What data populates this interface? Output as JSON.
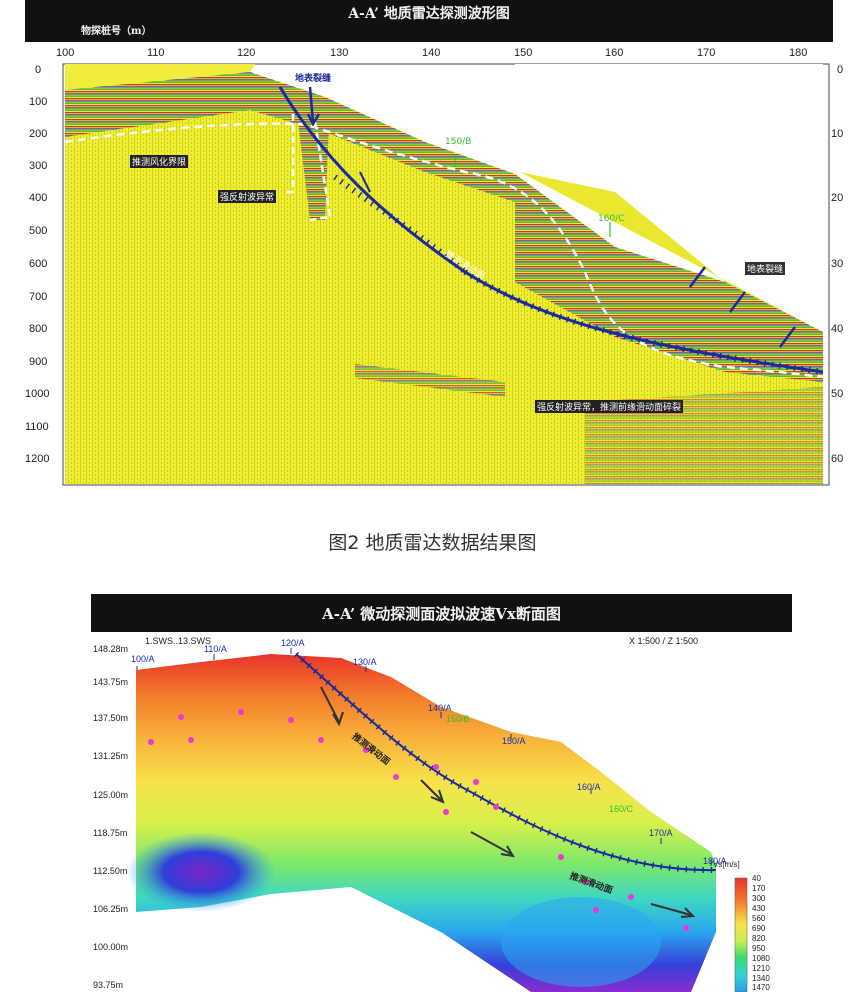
{
  "figure1": {
    "title": "A-A’ 地质雷达探测波形图",
    "x_axis_label": "物探桩号（m）",
    "x_ticks": [
      "100",
      "110",
      "120",
      "130",
      "140",
      "150",
      "160",
      "170",
      "180"
    ],
    "left_ticks": [
      "0",
      "100",
      "200",
      "300",
      "400",
      "500",
      "600",
      "700",
      "800",
      "900",
      "1000",
      "1100",
      "1200"
    ],
    "right_ticks": [
      "0",
      "10",
      "20",
      "30",
      "40",
      "50",
      "60"
    ],
    "annotations": {
      "landslide_wall_top": "地表裂缝",
      "weathered_interface": "推测风化界限",
      "strong_reflection": "强反射波异常",
      "station_150b": "150/B",
      "station_160c": "160/C",
      "sliding_surface": "推测滑动面",
      "surface_cracks": "地表裂缝",
      "deep_reflection": "强反射波异常，推测前缘滑动面碎裂"
    }
  },
  "caption": "图2 地质雷达数据结果图",
  "figure2": {
    "title": "A-A’ 微动探测面波拟波速Vx断面图",
    "header_left": "1.SWS..13.SWS",
    "scale_text": "X 1:500 / Z 1:500",
    "elevations": [
      "148.28m",
      "143.75m",
      "137.50m",
      "131.25m",
      "125.00m",
      "118.75m",
      "112.50m",
      "106.25m",
      "100.00m",
      "93.75m"
    ],
    "stations": [
      {
        "label": "100/A",
        "color": "#1a2bb8"
      },
      {
        "label": "110/A",
        "color": "#1a2bb8"
      },
      {
        "label": "120/A",
        "color": "#1a2bb8"
      },
      {
        "label": "130/A",
        "color": "#1a2bb8"
      },
      {
        "label": "140/A",
        "color": "#1a2bb8"
      },
      {
        "label": "150/B",
        "color": "#2fc02f"
      },
      {
        "label": "150/A",
        "color": "#1a2bb8"
      },
      {
        "label": "160/A",
        "color": "#1a2bb8"
      },
      {
        "label": "160/C",
        "color": "#2fc02f"
      },
      {
        "label": "170/A",
        "color": "#1a2bb8"
      },
      {
        "label": "180/A",
        "color": "#1a2bb8"
      }
    ],
    "sliding_label_1": "推测滑动面",
    "sliding_label_2": "推测滑动面",
    "legend_title": "Vs[m/s]",
    "legend_values": [
      "40",
      "170",
      "300",
      "430",
      "560",
      "690",
      "820",
      "950",
      "1080",
      "1210",
      "1340",
      "1470"
    ]
  }
}
